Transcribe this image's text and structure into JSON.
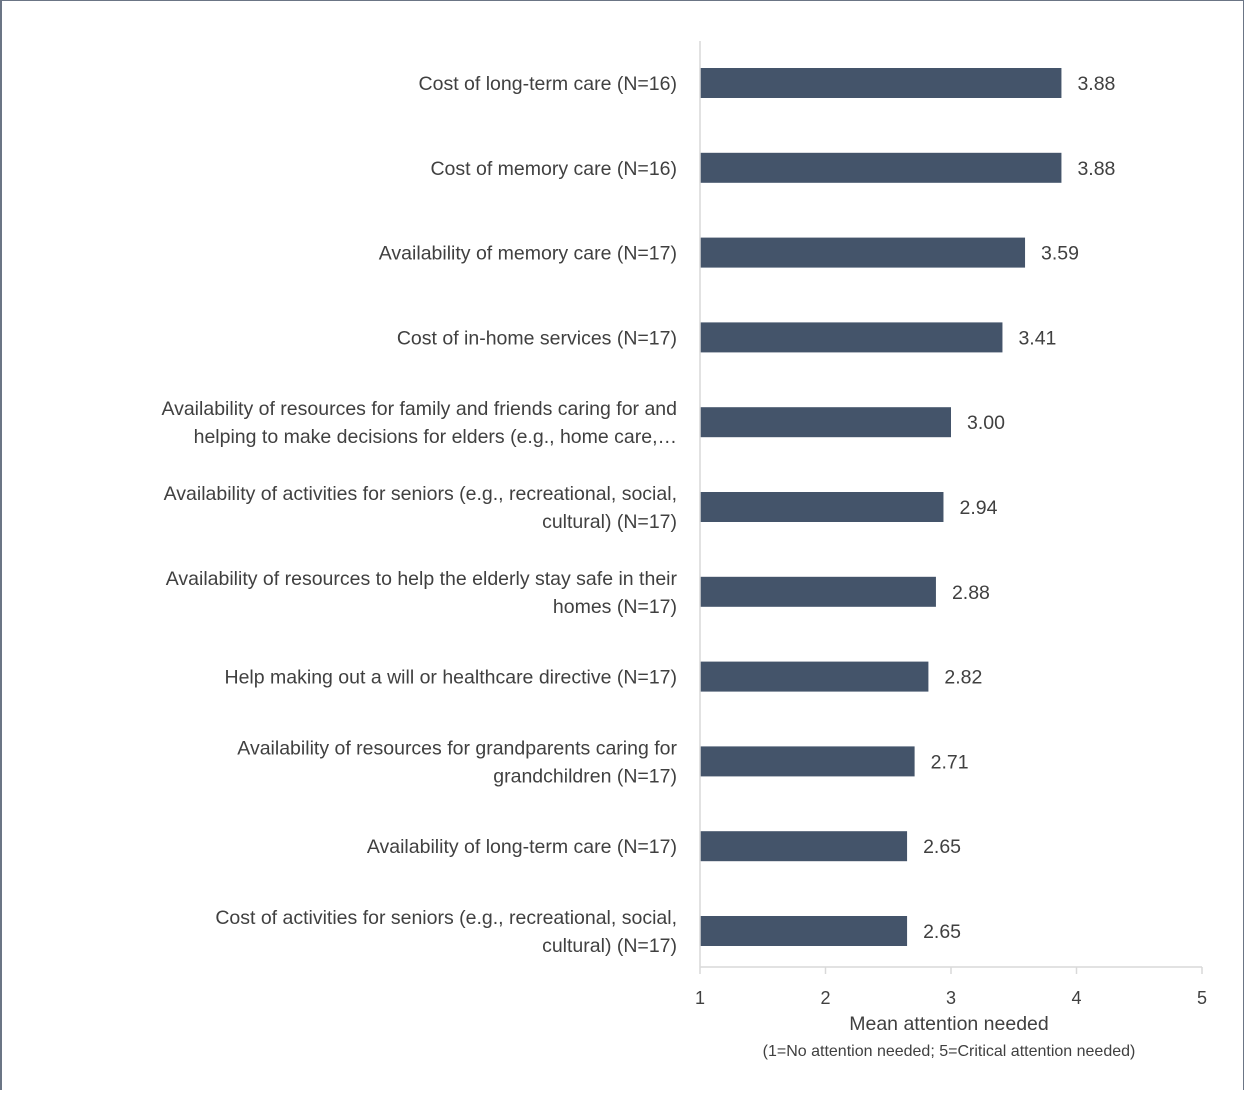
{
  "chart_data": {
    "type": "bar",
    "orientation": "horizontal",
    "categories": [
      [
        "Cost of long-term care (N=16)"
      ],
      [
        "Cost of memory care (N=16)"
      ],
      [
        "Availability of memory care (N=17)"
      ],
      [
        "Cost of in-home services (N=17)"
      ],
      [
        "Availability of resources for family and friends caring for and",
        "helping to make decisions for elders (e.g., home care,…"
      ],
      [
        "Availability of activities for seniors (e.g., recreational, social,",
        "cultural) (N=17)"
      ],
      [
        "Availability of resources to help the elderly stay safe in their",
        "homes (N=17)"
      ],
      [
        "Help making out a will or healthcare directive (N=17)"
      ],
      [
        "Availability of resources for grandparents caring for",
        "grandchildren (N=17)"
      ],
      [
        "Availability of long-term care (N=17)"
      ],
      [
        "Cost of activities for seniors (e.g., recreational, social,",
        "cultural) (N=17)"
      ]
    ],
    "values": [
      3.88,
      3.88,
      3.59,
      3.41,
      3.0,
      2.94,
      2.88,
      2.82,
      2.71,
      2.65,
      2.65
    ],
    "value_labels": [
      "3.88",
      "3.88",
      "3.59",
      "3.41",
      "3.00",
      "2.94",
      "2.88",
      "2.82",
      "2.71",
      "2.65",
      "2.65"
    ],
    "xlim": [
      1,
      5
    ],
    "xticks": [
      1,
      2,
      3,
      4,
      5
    ],
    "xlabel": "Mean attention needed",
    "xlabel_note": "(1=No attention needed; 5=Critical attention needed)",
    "bar_color": "#44546a",
    "axis_color": "#d9d9d9",
    "grid": false,
    "legend": "none"
  }
}
